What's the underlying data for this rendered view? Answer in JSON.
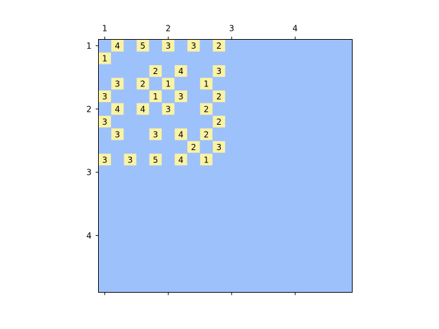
{
  "chart_data": {
    "type": "heatmap",
    "title": "",
    "xlabel": "",
    "ylabel": "",
    "xlim": [
      0.9,
      4.9
    ],
    "ylim": [
      0.9,
      4.9
    ],
    "x_axis_position": "top-and-bottom",
    "y_axis_inverted": true,
    "grid": false,
    "legend": "none",
    "x_ticks": [
      "1",
      "2",
      "3",
      "4"
    ],
    "y_ticks": [
      "1",
      "2",
      "3",
      "4"
    ],
    "background_color": "#9dc1fb",
    "label_box_color": "#fbf3a4",
    "cells": [
      {
        "x": 1.2,
        "y": 1.0,
        "label": "4"
      },
      {
        "x": 1.6,
        "y": 1.0,
        "label": "5"
      },
      {
        "x": 2.0,
        "y": 1.0,
        "label": "3"
      },
      {
        "x": 2.4,
        "y": 1.0,
        "label": "3"
      },
      {
        "x": 2.8,
        "y": 1.0,
        "label": "2"
      },
      {
        "x": 1.0,
        "y": 1.2,
        "label": "1"
      },
      {
        "x": 1.8,
        "y": 1.4,
        "label": "2"
      },
      {
        "x": 2.2,
        "y": 1.4,
        "label": "4"
      },
      {
        "x": 2.8,
        "y": 1.4,
        "label": "3"
      },
      {
        "x": 1.2,
        "y": 1.6,
        "label": "3"
      },
      {
        "x": 1.6,
        "y": 1.6,
        "label": "2"
      },
      {
        "x": 2.0,
        "y": 1.6,
        "label": "1"
      },
      {
        "x": 2.6,
        "y": 1.6,
        "label": "1"
      },
      {
        "x": 1.0,
        "y": 1.8,
        "label": "3"
      },
      {
        "x": 1.8,
        "y": 1.8,
        "label": "1"
      },
      {
        "x": 2.2,
        "y": 1.8,
        "label": "3"
      },
      {
        "x": 2.8,
        "y": 1.8,
        "label": "2"
      },
      {
        "x": 1.2,
        "y": 2.0,
        "label": "4"
      },
      {
        "x": 1.6,
        "y": 2.0,
        "label": "4"
      },
      {
        "x": 2.0,
        "y": 2.0,
        "label": "3"
      },
      {
        "x": 2.6,
        "y": 2.0,
        "label": "2"
      },
      {
        "x": 1.0,
        "y": 2.2,
        "label": "3"
      },
      {
        "x": 2.8,
        "y": 2.2,
        "label": "2"
      },
      {
        "x": 1.2,
        "y": 2.4,
        "label": "3"
      },
      {
        "x": 1.8,
        "y": 2.4,
        "label": "3"
      },
      {
        "x": 2.2,
        "y": 2.4,
        "label": "4"
      },
      {
        "x": 2.6,
        "y": 2.4,
        "label": "2"
      },
      {
        "x": 2.4,
        "y": 2.6,
        "label": "2"
      },
      {
        "x": 2.8,
        "y": 2.6,
        "label": "3"
      },
      {
        "x": 1.0,
        "y": 2.8,
        "label": "3"
      },
      {
        "x": 1.4,
        "y": 2.8,
        "label": "3"
      },
      {
        "x": 1.8,
        "y": 2.8,
        "label": "5"
      },
      {
        "x": 2.2,
        "y": 2.8,
        "label": "4"
      },
      {
        "x": 2.6,
        "y": 2.8,
        "label": "1"
      }
    ]
  }
}
